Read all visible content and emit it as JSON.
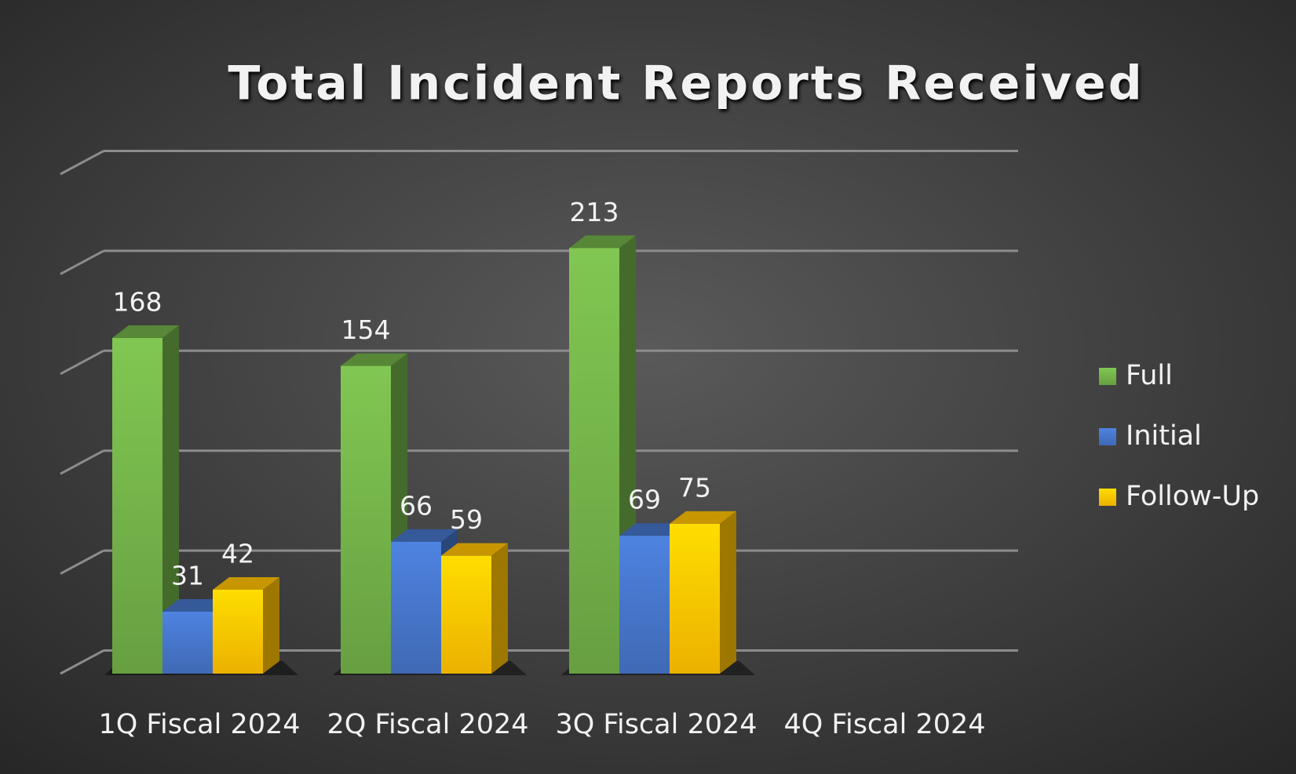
{
  "chart_data": {
    "type": "bar3d",
    "title": "Total Incident Reports Received",
    "categories": [
      "1Q Fiscal 2024",
      "2Q Fiscal 2024",
      "3Q Fiscal 2024",
      "4Q Fiscal 2024"
    ],
    "series": [
      {
        "name": "Full",
        "color": "#70ad47",
        "values": [
          168,
          154,
          213,
          null
        ]
      },
      {
        "name": "Initial",
        "color": "#4472c4",
        "values": [
          31,
          66,
          69,
          null
        ]
      },
      {
        "name": "Follow-Up",
        "color": "#ffc000",
        "values": [
          42,
          59,
          75,
          null
        ]
      }
    ],
    "ylim": [
      0,
      250
    ],
    "yticks": [
      0,
      50,
      100,
      150,
      200,
      250
    ],
    "grid": true,
    "legend": "right"
  }
}
